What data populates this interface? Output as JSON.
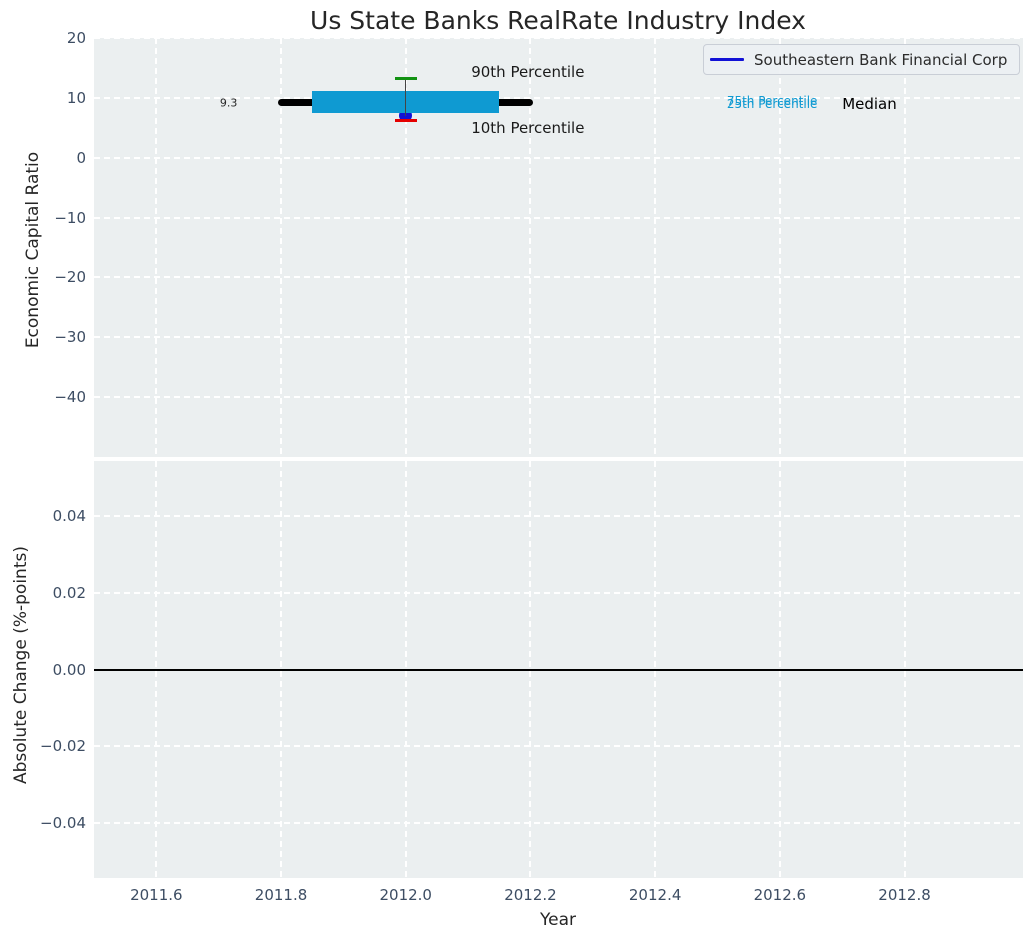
{
  "title": "Us State Banks RealRate Industry Index",
  "legend": {
    "label": "Southeastern Bank Financial Corp",
    "line_color": "#1111d6"
  },
  "colors": {
    "axes_bg": "#ebeff0",
    "grid": "#ffffff",
    "tick_label": "#3d4d63",
    "text": "#262626",
    "iqr_band": "#0f9ad2",
    "median_line": "#000000",
    "whisker": "#444444",
    "p90_cap": "#129212",
    "p10_cap": "#e50000",
    "company_marker": "#1111d6",
    "zero_line": "#000000"
  },
  "chart_data": [
    {
      "type": "line",
      "title": "Us State Banks RealRate Industry Index",
      "ylabel": "Economic Capital Ratio",
      "xlim": [
        2011.5,
        2012.99
      ],
      "ylim": [
        -50,
        20
      ],
      "yticks": [
        20,
        10,
        0,
        -10,
        -20,
        -30,
        -40
      ],
      "xticks": [
        2011.6,
        2011.8,
        2012.0,
        2012.2,
        2012.4,
        2012.6,
        2012.8
      ],
      "grid": true,
      "legend_position": "upper right",
      "series": [
        {
          "name": "Southeastern Bank Financial Corp",
          "type": "scatter",
          "x": [
            2012.0
          ],
          "y": [
            7.0
          ],
          "color": "#1111d6"
        },
        {
          "name": "Median",
          "type": "line",
          "x": [
            2011.8,
            2012.2
          ],
          "y": [
            9.3,
            9.3
          ],
          "color": "#000000"
        },
        {
          "name": "25th-75th Percentile band",
          "type": "band",
          "x": [
            2011.85,
            2012.15
          ],
          "y_low": 7.5,
          "y_high": 11.2,
          "color": "#0f9ad2"
        },
        {
          "name": "whisker",
          "type": "vline",
          "x": 2012.0,
          "y1": 13.2,
          "y2": 7.0,
          "color": "#444444"
        },
        {
          "name": "90th Percentile",
          "type": "tick",
          "x": 2012.0,
          "y": 13.2,
          "color": "#129212"
        },
        {
          "name": "10th Percentile",
          "type": "tick",
          "x": 2012.0,
          "y": 6.3,
          "color": "#e50000"
        }
      ],
      "annotations": [
        {
          "text": "9.3",
          "x": 2011.73,
          "y": 9.2,
          "color": "#262626",
          "size": 11,
          "align": "right"
        },
        {
          "text": "90th Percentile",
          "x": 2012.105,
          "y": 14.3,
          "color": "#1a1a1a",
          "size": 15,
          "align": "left"
        },
        {
          "text": "10th Percentile",
          "x": 2012.105,
          "y": 4.9,
          "color": "#1a1a1a",
          "size": 15,
          "align": "left"
        },
        {
          "text": "75th Percentile",
          "x": 2012.515,
          "y": 9.5,
          "color": "#0f9ad2",
          "size": 12,
          "align": "left"
        },
        {
          "text": "25th Percentile",
          "x": 2012.515,
          "y": 9.0,
          "color": "#0f9ad2",
          "size": 12,
          "align": "left"
        },
        {
          "text": "Median",
          "x": 2012.7,
          "y": 9.0,
          "color": "#000000",
          "size": 15,
          "align": "left"
        }
      ]
    },
    {
      "type": "line",
      "ylabel": "Absolute Change (%-points)",
      "xlabel": "Year",
      "xlim": [
        2011.5,
        2012.99
      ],
      "ylim": [
        -0.0545,
        0.0545
      ],
      "yticks": [
        0.04,
        0.02,
        0,
        -0.02,
        -0.04
      ],
      "xticks": [
        2011.6,
        2011.8,
        2012.0,
        2012.2,
        2012.4,
        2012.6,
        2012.8
      ],
      "grid": true,
      "zero_line": 0,
      "series": []
    }
  ]
}
